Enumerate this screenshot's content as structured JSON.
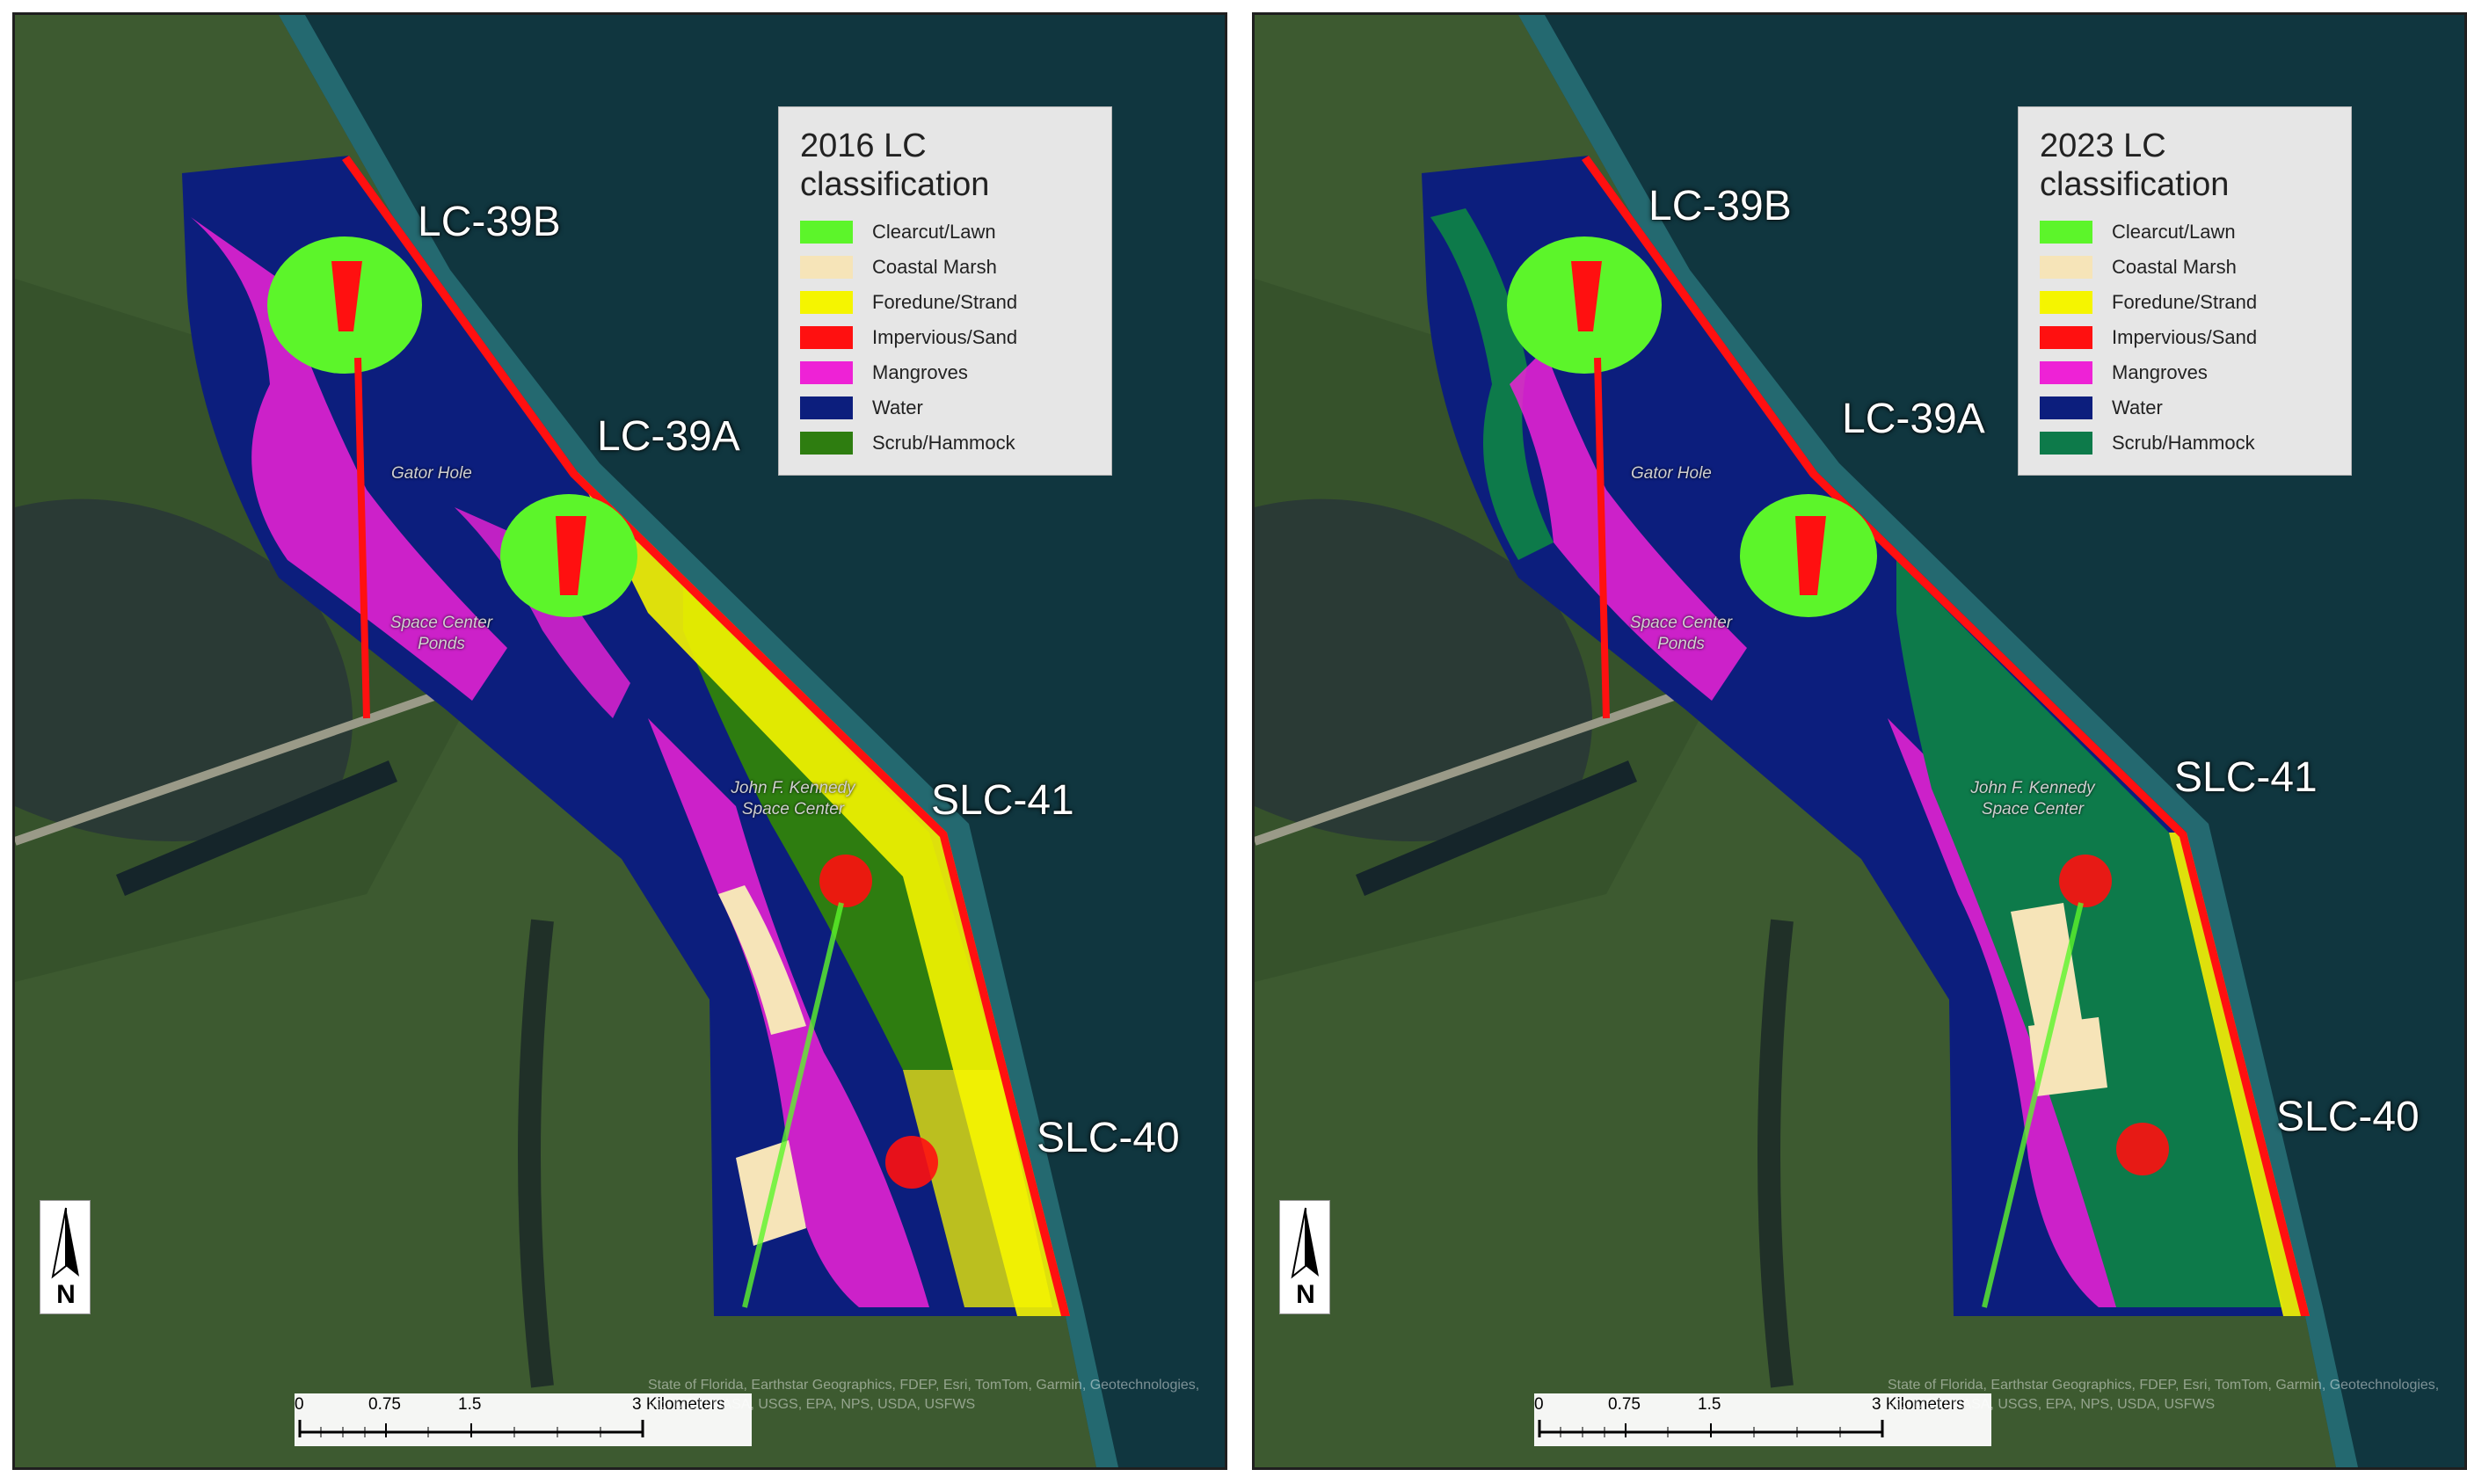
{
  "colors": {
    "clearcut_lawn": "#5cf52a",
    "coastal_marsh": "#f6e4b8",
    "foredune_strand": "#f5f500",
    "impervious_sand": "#ff1010",
    "mangroves": "#ee22d6",
    "water": "#0c1e7d",
    "scrub_hammock_2016": "#2e7d10",
    "scrub_hammock_2023": "#0d7a4a",
    "ocean": "#10363f",
    "land": "#3d5a30"
  },
  "panels": [
    {
      "legend_title": "2016 LC classification",
      "legend_items": [
        {
          "label": "Clearcut/Lawn",
          "color": "#5cf52a"
        },
        {
          "label": "Coastal Marsh",
          "color": "#f6e4b8"
        },
        {
          "label": "Foredune/Strand",
          "color": "#f5f500"
        },
        {
          "label": "Impervious/Sand",
          "color": "#ff1010"
        },
        {
          "label": "Mangroves",
          "color": "#ee22d6"
        },
        {
          "label": "Water",
          "color": "#0c1e7d"
        },
        {
          "label": "Scrub/Hammock",
          "color": "#2e7d10"
        }
      ],
      "sites": [
        "LC-39B",
        "LC-39A",
        "SLC-41",
        "SLC-40"
      ],
      "places": [
        "Gator Hole",
        "Space Center Ponds",
        "John F. Kennedy Space Center"
      ],
      "north_label": "N",
      "scale_ticks": [
        "0",
        "0.75",
        "1.5",
        "3 Kilometers"
      ],
      "credits": "State of Florida, Earthstar Geographics, FDEP, Esri, TomTom, Garmin, Geotechnologies, Inc, METI/NASA, USGS, EPA, NPS, USDA, USFWS"
    },
    {
      "legend_title": "2023 LC classification",
      "legend_items": [
        {
          "label": "Clearcut/Lawn",
          "color": "#5cf52a"
        },
        {
          "label": "Coastal Marsh",
          "color": "#f6e4b8"
        },
        {
          "label": "Foredune/Strand",
          "color": "#f5f500"
        },
        {
          "label": "Impervious/Sand",
          "color": "#ff1010"
        },
        {
          "label": "Mangroves",
          "color": "#ee22d6"
        },
        {
          "label": "Water",
          "color": "#0c1e7d"
        },
        {
          "label": "Scrub/Hammock",
          "color": "#0d7a4a"
        }
      ],
      "sites": [
        "LC-39B",
        "LC-39A",
        "SLC-41",
        "SLC-40"
      ],
      "places": [
        "Gator Hole",
        "Space Center Ponds",
        "John F. Kennedy Space Center"
      ],
      "north_label": "N",
      "scale_ticks": [
        "0",
        "0.75",
        "1.5",
        "3 Kilometers"
      ],
      "credits": "State of Florida, Earthstar Geographics, FDEP, Esri, TomTom, Garmin, Geotechnologies, Inc, METI/NASA, USGS, EPA, NPS, USDA, USFWS"
    }
  ]
}
